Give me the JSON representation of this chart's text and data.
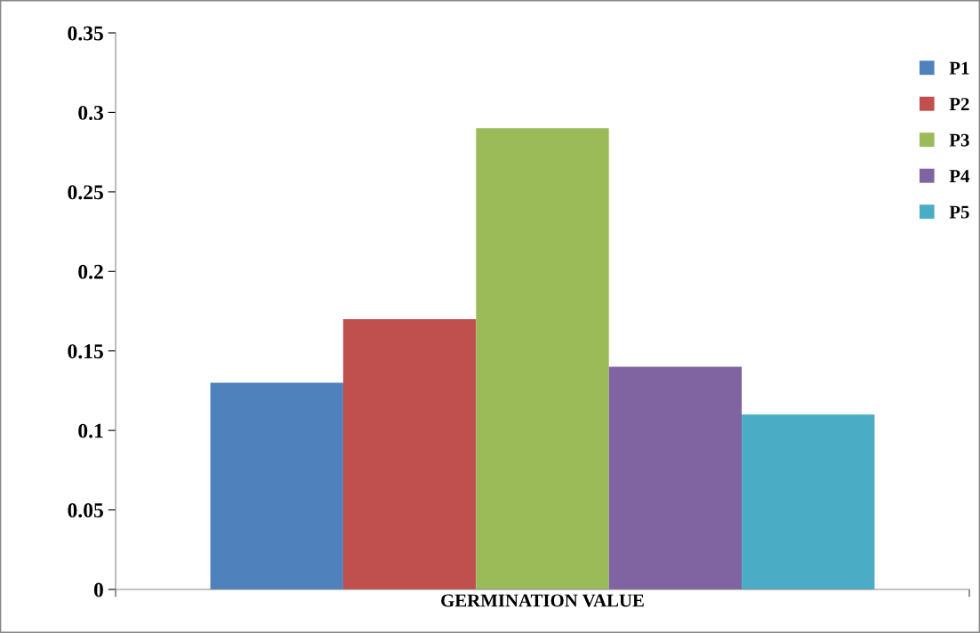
{
  "chart_data": {
    "type": "bar",
    "categories": [
      "GERMINATION VALUE"
    ],
    "series": [
      {
        "name": "P1",
        "color": "#4f81bd",
        "values": [
          0.13
        ]
      },
      {
        "name": "P2",
        "color": "#c0504d",
        "values": [
          0.17
        ]
      },
      {
        "name": "P3",
        "color": "#9bbb59",
        "values": [
          0.29
        ]
      },
      {
        "name": "P4",
        "color": "#8064a2",
        "values": [
          0.14
        ]
      },
      {
        "name": "P5",
        "color": "#4bacc6",
        "values": [
          0.11
        ]
      }
    ],
    "ylim": [
      0,
      0.35
    ],
    "yticks": [
      0,
      0.05,
      0.1,
      0.15,
      0.2,
      0.25,
      0.3,
      0.35
    ],
    "grid": false,
    "legend": "top right"
  }
}
